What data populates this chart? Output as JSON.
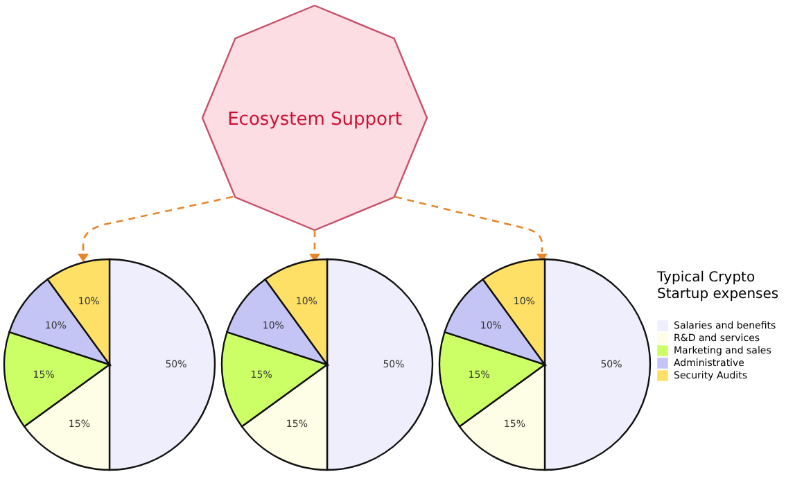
{
  "chart_data": [
    {
      "type": "other",
      "title": "Ecosystem Support"
    },
    {
      "type": "pie",
      "categories": [
        "Salaries and benefits",
        "R&D and services",
        "Marketing and sales",
        "Administrative",
        "Security Audits"
      ],
      "colors": [
        "#eeeefc",
        "#fefee6",
        "#ccff66",
        "#c5c5f5",
        "#ffe066"
      ],
      "legend": "right",
      "legend_title": "Typical Crypto Startup expenses",
      "series": [
        {
          "values": [
            50,
            15,
            15,
            10,
            10
          ],
          "value_labels": [
            "50%",
            "15%",
            "15%",
            "10%",
            "10%"
          ]
        },
        {
          "values": [
            50,
            15,
            15,
            10,
            10
          ],
          "value_labels": [
            "50%",
            "15%",
            "15%",
            "10%",
            "10%"
          ]
        },
        {
          "values": [
            50,
            15,
            15,
            10,
            10
          ],
          "value_labels": [
            "50%",
            "15%",
            "15%",
            "10%",
            "10%"
          ]
        }
      ]
    }
  ]
}
